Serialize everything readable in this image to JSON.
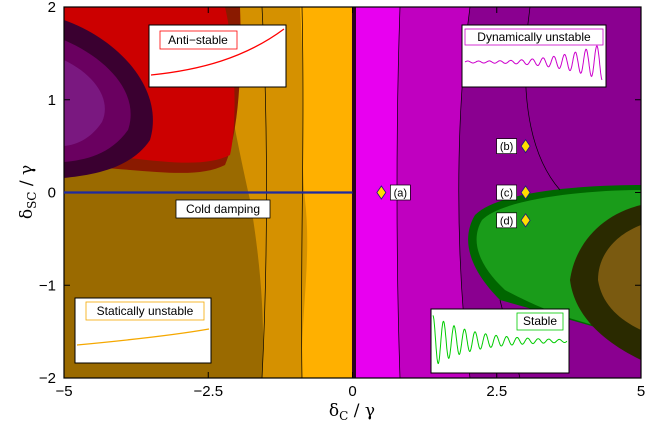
{
  "chart_data": {
    "type": "heatmap",
    "title": "",
    "xlabel": {
      "main": "δ",
      "sub": "C",
      "rest": " / γ"
    },
    "ylabel": {
      "main": "δ",
      "sub": "SC",
      "rest": " / γ"
    },
    "xlim": [
      -5,
      5
    ],
    "ylim": [
      -2,
      2
    ],
    "x_ticks": [
      -5,
      -2.5,
      0,
      2.5,
      5
    ],
    "x_tick_labels": [
      "−5",
      "−2.5",
      "0",
      "2.5",
      "5"
    ],
    "y_ticks": [
      -2,
      -1,
      0,
      1,
      2
    ],
    "y_tick_labels": [
      "−2",
      "−1",
      "0",
      "1",
      "2"
    ],
    "regions": [
      {
        "name": "Anti-stable",
        "color": "#cc0000"
      },
      {
        "name": "Statically unstable",
        "color": "#f5a800"
      },
      {
        "name": "Dynamically unstable",
        "color": "#c000c0"
      },
      {
        "name": "Stable",
        "color": "#1a9c1a"
      }
    ],
    "cold_damping": {
      "label": "Cold damping",
      "x": [
        -5,
        0
      ],
      "y": 0,
      "color": "#1f2aa0"
    },
    "points": [
      {
        "label": "(a)",
        "x": 0.5,
        "y": 0
      },
      {
        "label": "(b)",
        "x": 3.0,
        "y": 0.5
      },
      {
        "label": "(c)",
        "x": 3.0,
        "y": 0
      },
      {
        "label": "(d)",
        "x": 3.0,
        "y": -0.3
      }
    ],
    "insets": [
      {
        "label": "Anti−stable",
        "curve": "rising",
        "color": "#ff0000"
      },
      {
        "label": "Dynamically unstable",
        "curve": "growing-oscillation",
        "color": "#cc00cc"
      },
      {
        "label": "Statically unstable",
        "curve": "slow-rise",
        "color": "#f5a800"
      },
      {
        "label": "Stable",
        "curve": "damped-oscillation",
        "color": "#00cc00"
      }
    ],
    "grid": false,
    "legend": "none"
  }
}
